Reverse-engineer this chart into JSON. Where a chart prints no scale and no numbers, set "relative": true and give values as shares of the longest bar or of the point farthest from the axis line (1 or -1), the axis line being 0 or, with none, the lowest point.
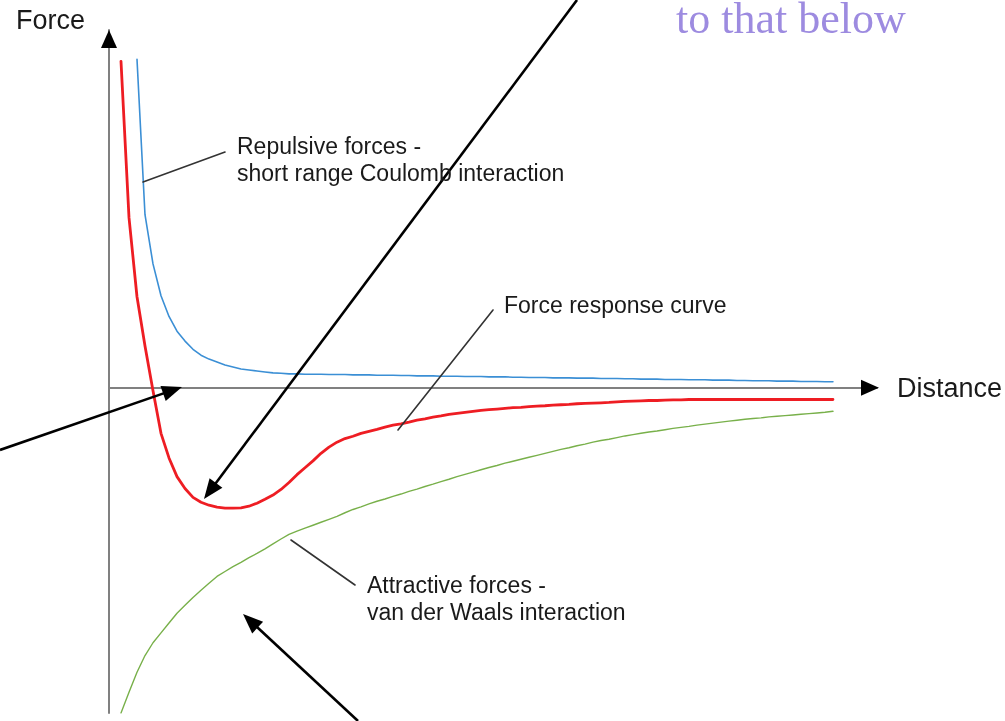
{
  "chart_data": {
    "type": "line",
    "relative": true,
    "xlabel": "Distance",
    "ylabel": "Force",
    "categories": [
      null,
      null,
      null,
      null,
      null,
      null,
      null,
      null,
      null,
      null,
      null,
      null,
      null,
      null,
      null,
      null,
      null,
      null,
      null,
      null,
      null,
      null,
      null,
      null,
      null,
      null,
      null,
      null,
      null,
      null,
      null,
      null,
      null,
      null,
      null,
      null,
      null,
      null,
      null,
      null,
      null,
      null,
      null,
      null,
      null,
      null,
      null,
      null,
      null,
      null,
      null,
      null,
      null,
      null,
      null,
      null,
      null,
      null,
      null,
      null,
      null,
      null,
      null,
      null,
      null,
      null,
      null,
      null,
      null,
      null,
      null,
      null,
      null,
      null,
      null,
      null,
      null,
      null,
      null,
      null,
      null,
      null,
      null,
      null,
      null,
      null,
      null,
      null,
      null,
      null,
      null,
      null,
      null,
      null,
      null,
      null
    ],
    "series": [
      {
        "color": "#3b8fd5",
        "values": [
          null,
          null,
          null,
          1.0,
          0.527,
          0.377,
          0.28,
          0.217,
          0.172,
          0.142,
          0.117,
          0.099,
          0.087,
          0.078,
          0.069,
          0.063,
          0.057,
          0.054,
          0.051,
          0.048,
          0.045,
          0.044,
          0.042,
          0.042,
          0.041,
          0.041,
          0.041,
          0.04,
          0.04,
          0.04,
          0.039,
          0.039,
          0.039,
          0.038,
          0.038,
          0.038,
          0.037,
          0.037,
          0.036,
          0.036,
          0.036,
          0.035,
          0.035,
          0.035,
          0.034,
          0.034,
          0.034,
          0.033,
          0.033,
          0.033,
          0.032,
          0.032,
          0.031,
          0.031,
          0.031,
          0.03,
          0.03,
          0.03,
          0.029,
          0.029,
          0.029,
          0.028,
          0.028,
          0.028,
          0.027,
          0.027,
          0.026,
          0.026,
          0.026,
          0.025,
          0.025,
          0.025,
          0.024,
          0.024,
          0.024,
          0.023,
          0.023,
          0.023,
          0.022,
          0.022,
          0.021,
          0.021,
          0.021,
          0.02,
          0.02,
          0.02,
          0.019,
          0.019,
          0.019,
          0.018,
          0.018,
          null,
          null,
          null,
          null,
          null
        ]
      },
      {
        "color": "#ee1d23",
        "values": [
          null,
          0.994,
          0.518,
          0.277,
          0.127,
          -0.009,
          -0.139,
          -0.214,
          -0.271,
          -0.307,
          -0.334,
          -0.349,
          -0.358,
          -0.364,
          -0.367,
          -0.367,
          -0.366,
          -0.361,
          -0.352,
          -0.34,
          -0.327,
          -0.31,
          -0.289,
          -0.265,
          -0.244,
          -0.223,
          -0.2,
          -0.181,
          -0.166,
          -0.155,
          -0.148,
          -0.139,
          -0.133,
          -0.127,
          -0.12,
          -0.114,
          -0.11,
          -0.105,
          -0.099,
          -0.095,
          -0.09,
          -0.086,
          -0.081,
          -0.078,
          -0.075,
          -0.072,
          -0.069,
          -0.067,
          -0.065,
          -0.063,
          -0.061,
          -0.06,
          -0.058,
          -0.056,
          -0.055,
          -0.053,
          -0.052,
          -0.051,
          -0.049,
          -0.048,
          -0.047,
          -0.046,
          -0.045,
          -0.043,
          -0.042,
          -0.041,
          -0.04,
          -0.039,
          -0.039,
          -0.038,
          -0.037,
          -0.037,
          -0.036,
          -0.036,
          -0.036,
          -0.036,
          -0.036,
          -0.036,
          -0.036,
          -0.036,
          -0.036,
          -0.036,
          -0.036,
          -0.036,
          -0.036,
          -0.036,
          -0.036,
          -0.036,
          -0.036,
          -0.036,
          -0.036,
          null,
          null,
          null,
          null,
          null
        ]
      },
      {
        "color": "#78b04a",
        "values": [
          null,
          -0.991,
          -0.928,
          -0.867,
          -0.816,
          -0.777,
          -0.747,
          -0.717,
          -0.687,
          -0.663,
          -0.639,
          -0.617,
          -0.596,
          -0.575,
          -0.56,
          -0.545,
          -0.532,
          -0.518,
          -0.505,
          -0.491,
          -0.476,
          -0.461,
          -0.447,
          -0.437,
          -0.428,
          -0.419,
          -0.41,
          -0.401,
          -0.392,
          -0.381,
          -0.371,
          -0.363,
          -0.354,
          -0.346,
          -0.339,
          -0.331,
          -0.324,
          -0.316,
          -0.309,
          -0.301,
          -0.294,
          -0.286,
          -0.279,
          -0.271,
          -0.264,
          -0.257,
          -0.25,
          -0.243,
          -0.237,
          -0.23,
          -0.224,
          -0.218,
          -0.212,
          -0.206,
          -0.2,
          -0.194,
          -0.188,
          -0.183,
          -0.177,
          -0.172,
          -0.166,
          -0.161,
          -0.157,
          -0.152,
          -0.147,
          -0.143,
          -0.139,
          -0.135,
          -0.132,
          -0.128,
          -0.124,
          -0.121,
          -0.118,
          -0.114,
          -0.111,
          -0.108,
          -0.105,
          -0.102,
          -0.099,
          -0.096,
          -0.094,
          -0.092,
          -0.089,
          -0.087,
          -0.085,
          -0.083,
          -0.081,
          -0.079,
          -0.077,
          -0.075,
          -0.072,
          null,
          null,
          null,
          null,
          null
        ]
      }
    ],
    "annotations": [
      "Repulsive forces -\nshort range Coulomb interaction",
      "Force response curve",
      "Attractive forces -\nvan der Waals interaction",
      "to that below"
    ],
    "grid": false,
    "marker": "none",
    "line_style": "solid"
  }
}
